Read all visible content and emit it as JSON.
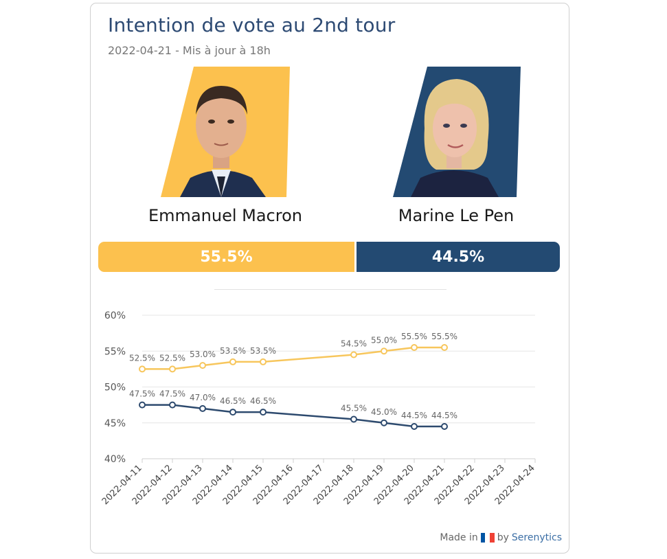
{
  "header": {
    "title": "Intention de vote au 2nd tour",
    "subtitle": "2022-04-21 - Mis à jour à 18h"
  },
  "candidates": [
    {
      "name": "Emmanuel Macron",
      "share": "55.5%",
      "share_value": 55.5,
      "color": "#fcc14e"
    },
    {
      "name": "Marine Le Pen",
      "share": "44.5%",
      "share_value": 44.5,
      "color": "#234a72"
    }
  ],
  "footer": {
    "made_in": "Made in",
    "by": "by",
    "brand": "Serenytics",
    "flag_colors": [
      "#0055a4",
      "#ffffff",
      "#ef4135"
    ]
  },
  "chart_data": {
    "type": "line",
    "x": [
      "2022-04-11",
      "2022-04-12",
      "2022-04-13",
      "2022-04-14",
      "2022-04-15",
      "2022-04-16",
      "2022-04-17",
      "2022-04-18",
      "2022-04-19",
      "2022-04-20",
      "2022-04-21",
      "2022-04-22",
      "2022-04-23",
      "2022-04-24"
    ],
    "ylim": [
      40,
      60
    ],
    "yticks": [
      40,
      45,
      50,
      55,
      60
    ],
    "ytick_labels": [
      "40%",
      "45%",
      "50%",
      "55%",
      "60%"
    ],
    "grid": true,
    "series": [
      {
        "name": "Emmanuel Macron",
        "color": "#f7c65c",
        "points": [
          {
            "x": "2022-04-11",
            "y": 52.5,
            "label": "52.5%"
          },
          {
            "x": "2022-04-12",
            "y": 52.5,
            "label": "52.5%"
          },
          {
            "x": "2022-04-13",
            "y": 53.0,
            "label": "53.0%"
          },
          {
            "x": "2022-04-14",
            "y": 53.5,
            "label": "53.5%"
          },
          {
            "x": "2022-04-15",
            "y": 53.5,
            "label": "53.5%"
          },
          {
            "x": "2022-04-18",
            "y": 54.5,
            "label": "54.5%"
          },
          {
            "x": "2022-04-19",
            "y": 55.0,
            "label": "55.0%"
          },
          {
            "x": "2022-04-20",
            "y": 55.5,
            "label": "55.5%"
          },
          {
            "x": "2022-04-21",
            "y": 55.5,
            "label": "55.5%"
          }
        ]
      },
      {
        "name": "Marine Le Pen",
        "color": "#2d4a6e",
        "points": [
          {
            "x": "2022-04-11",
            "y": 47.5,
            "label": "47.5%"
          },
          {
            "x": "2022-04-12",
            "y": 47.5,
            "label": "47.5%"
          },
          {
            "x": "2022-04-13",
            "y": 47.0,
            "label": "47.0%"
          },
          {
            "x": "2022-04-14",
            "y": 46.5,
            "label": "46.5%"
          },
          {
            "x": "2022-04-15",
            "y": 46.5,
            "label": "46.5%"
          },
          {
            "x": "2022-04-18",
            "y": 45.5,
            "label": "45.5%"
          },
          {
            "x": "2022-04-19",
            "y": 45.0,
            "label": "45.0%"
          },
          {
            "x": "2022-04-20",
            "y": 44.5,
            "label": "44.5%"
          },
          {
            "x": "2022-04-21",
            "y": 44.5,
            "label": "44.5%"
          }
        ]
      }
    ]
  }
}
